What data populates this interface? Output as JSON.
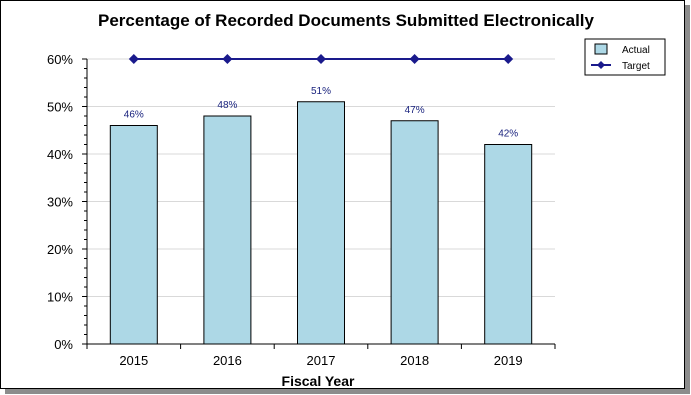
{
  "chart_data": {
    "type": "bar",
    "title": "Percentage of Recorded Documents Submitted Electronically",
    "xlabel": "Fiscal Year",
    "ylabel": "",
    "categories": [
      "2015",
      "2016",
      "2017",
      "2018",
      "2019"
    ],
    "series": [
      {
        "name": "Actual",
        "type": "bar",
        "values": [
          46,
          48,
          51,
          47,
          42
        ],
        "labels": [
          "46%",
          "48%",
          "51%",
          "47%",
          "42%"
        ]
      },
      {
        "name": "Target",
        "type": "line",
        "values": [
          60,
          60,
          60,
          60,
          60
        ]
      }
    ],
    "ylim": [
      0,
      60
    ],
    "yticks": [
      0,
      10,
      20,
      30,
      40,
      50,
      60
    ],
    "ytick_labels": [
      "0%",
      "10%",
      "20%",
      "30%",
      "40%",
      "50%",
      "60%"
    ],
    "grid": true,
    "legend": "top-right",
    "colors": {
      "bar_fill": "#add8e6",
      "bar_stroke": "#000000",
      "line": "#1a1a8c",
      "grid": "#d9d9d9"
    }
  }
}
